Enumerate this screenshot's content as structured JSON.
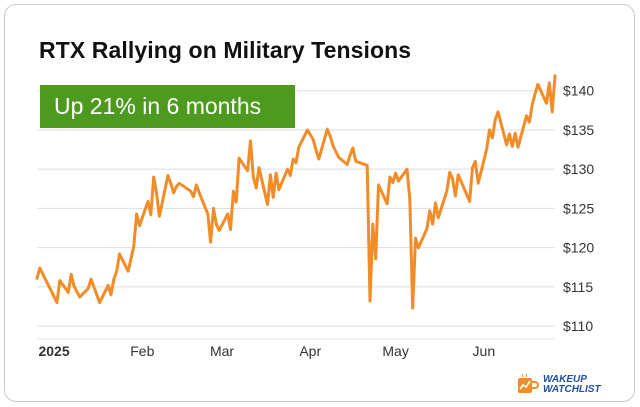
{
  "badge": "Up 21% in 6 months",
  "brand": {
    "line1": "WAKEUP",
    "line2": "WATCHLIST",
    "icon": "coffee-mug-chart-icon"
  },
  "colors": {
    "line": "#f28c28",
    "badge": "#4e9a1e",
    "grid": "#dddddd",
    "text": "#333333",
    "brand": "#1f4fa8"
  },
  "chart_data": {
    "type": "line",
    "title": "RTX Rallying on Military Tensions",
    "xlabel": "",
    "ylabel": "",
    "ylim": [
      109,
      142
    ],
    "xlim": [
      "2024-12-26",
      "2025-06-19"
    ],
    "grid": true,
    "y_axis_side": "right",
    "y_ticks": [
      {
        "value": 110,
        "label": "$110"
      },
      {
        "value": 115,
        "label": "$115"
      },
      {
        "value": 120,
        "label": "$120"
      },
      {
        "value": 125,
        "label": "$125"
      },
      {
        "value": 130,
        "label": "$130"
      },
      {
        "value": 135,
        "label": "$135"
      },
      {
        "value": 140,
        "label": "$140"
      }
    ],
    "x_ticks": [
      {
        "date": "2025-01-01",
        "label": "2025"
      },
      {
        "date": "2025-02-01",
        "label": "Feb"
      },
      {
        "date": "2025-03-01",
        "label": "Mar"
      },
      {
        "date": "2025-04-01",
        "label": "Apr"
      },
      {
        "date": "2025-05-01",
        "label": "May"
      },
      {
        "date": "2025-06-01",
        "label": "Jun"
      }
    ],
    "series": [
      {
        "points": [
          [
            "2024-12-26",
            116.1
          ],
          [
            "2024-12-27",
            117.4
          ],
          [
            "2024-12-30",
            115.2
          ],
          [
            "2024-12-31",
            114.5
          ],
          [
            "2025-01-02",
            113.0
          ],
          [
            "2025-01-03",
            115.8
          ],
          [
            "2025-01-06",
            114.3
          ],
          [
            "2025-01-07",
            116.6
          ],
          [
            "2025-01-08",
            115.1
          ],
          [
            "2025-01-10",
            113.7
          ],
          [
            "2025-01-13",
            114.8
          ],
          [
            "2025-01-14",
            116.0
          ],
          [
            "2025-01-15",
            115.0
          ],
          [
            "2025-01-16",
            114.0
          ],
          [
            "2025-01-17",
            113.0
          ],
          [
            "2025-01-20",
            115.2
          ],
          [
            "2025-01-21",
            114.0
          ],
          [
            "2025-01-22",
            116.0
          ],
          [
            "2025-01-23",
            117.0
          ],
          [
            "2025-01-24",
            119.2
          ],
          [
            "2025-01-27",
            117.0
          ],
          [
            "2025-01-28",
            118.5
          ],
          [
            "2025-01-29",
            120.2
          ],
          [
            "2025-01-30",
            124.3
          ],
          [
            "2025-01-31",
            122.8
          ],
          [
            "2025-02-03",
            125.9
          ],
          [
            "2025-02-04",
            124.2
          ],
          [
            "2025-02-05",
            129.0
          ],
          [
            "2025-02-06",
            127.0
          ],
          [
            "2025-02-07",
            124.0
          ],
          [
            "2025-02-10",
            129.2
          ],
          [
            "2025-02-11",
            128.2
          ],
          [
            "2025-02-12",
            127.0
          ],
          [
            "2025-02-13",
            127.8
          ],
          [
            "2025-02-14",
            128.2
          ],
          [
            "2025-02-18",
            127.2
          ],
          [
            "2025-02-19",
            126.5
          ],
          [
            "2025-02-20",
            128.0
          ],
          [
            "2025-02-21",
            127.0
          ],
          [
            "2025-02-24",
            124.3
          ],
          [
            "2025-02-25",
            120.7
          ],
          [
            "2025-02-26",
            125.0
          ],
          [
            "2025-02-27",
            123.0
          ],
          [
            "2025-02-28",
            122.2
          ],
          [
            "2025-03-03",
            124.3
          ],
          [
            "2025-03-04",
            122.3
          ],
          [
            "2025-03-05",
            127.2
          ],
          [
            "2025-03-06",
            125.8
          ],
          [
            "2025-03-07",
            131.4
          ],
          [
            "2025-03-10",
            129.8
          ],
          [
            "2025-03-11",
            133.6
          ],
          [
            "2025-03-12",
            129.0
          ],
          [
            "2025-03-13",
            127.6
          ],
          [
            "2025-03-14",
            130.2
          ],
          [
            "2025-03-17",
            125.5
          ],
          [
            "2025-03-18",
            129.3
          ],
          [
            "2025-03-19",
            126.4
          ],
          [
            "2025-03-20",
            129.5
          ],
          [
            "2025-03-21",
            127.4
          ],
          [
            "2025-03-24",
            130.0
          ],
          [
            "2025-03-25",
            129.2
          ],
          [
            "2025-03-26",
            131.3
          ],
          [
            "2025-03-27",
            130.8
          ],
          [
            "2025-03-28",
            132.8
          ],
          [
            "2025-03-31",
            135.0
          ],
          [
            "2025-04-02",
            133.8
          ],
          [
            "2025-04-03",
            132.5
          ],
          [
            "2025-04-04",
            131.3
          ],
          [
            "2025-04-07",
            135.1
          ],
          [
            "2025-04-08",
            134.2
          ],
          [
            "2025-04-09",
            133.0
          ],
          [
            "2025-04-11",
            131.5
          ],
          [
            "2025-04-14",
            130.6
          ],
          [
            "2025-04-15",
            131.8
          ],
          [
            "2025-04-16",
            132.7
          ],
          [
            "2025-04-17",
            131.0
          ],
          [
            "2025-04-21",
            130.5
          ],
          [
            "2025-04-22",
            113.2
          ],
          [
            "2025-04-23",
            123.0
          ],
          [
            "2025-04-24",
            118.6
          ],
          [
            "2025-04-25",
            128.0
          ],
          [
            "2025-04-28",
            125.6
          ],
          [
            "2025-04-29",
            129.0
          ],
          [
            "2025-04-30",
            128.3
          ],
          [
            "2025-05-01",
            129.5
          ],
          [
            "2025-05-02",
            128.5
          ],
          [
            "2025-05-05",
            130.0
          ],
          [
            "2025-05-06",
            126.2
          ],
          [
            "2025-05-07",
            112.3
          ],
          [
            "2025-05-08",
            121.2
          ],
          [
            "2025-05-09",
            120.0
          ],
          [
            "2025-05-12",
            122.4
          ],
          [
            "2025-05-13",
            124.7
          ],
          [
            "2025-05-14",
            123.0
          ],
          [
            "2025-05-15",
            125.7
          ],
          [
            "2025-05-16",
            123.8
          ],
          [
            "2025-05-19",
            127.2
          ],
          [
            "2025-05-20",
            129.6
          ],
          [
            "2025-05-21",
            128.8
          ],
          [
            "2025-05-22",
            126.6
          ],
          [
            "2025-05-23",
            129.3
          ],
          [
            "2025-05-27",
            125.9
          ],
          [
            "2025-05-28",
            130.2
          ],
          [
            "2025-05-29",
            131.0
          ],
          [
            "2025-05-30",
            128.2
          ],
          [
            "2025-06-02",
            132.6
          ],
          [
            "2025-06-03",
            135.0
          ],
          [
            "2025-06-04",
            134.0
          ],
          [
            "2025-06-05",
            136.3
          ],
          [
            "2025-06-06",
            137.3
          ],
          [
            "2025-06-09",
            133.1
          ],
          [
            "2025-06-10",
            134.5
          ],
          [
            "2025-06-11",
            132.9
          ],
          [
            "2025-06-12",
            134.6
          ],
          [
            "2025-06-13",
            132.8
          ],
          [
            "2025-06-16",
            136.8
          ],
          [
            "2025-06-17",
            136.0
          ],
          [
            "2025-06-18",
            138.2
          ],
          [
            "2025-06-19",
            139.6
          ],
          [
            "2025-06-20",
            140.8
          ],
          [
            "2025-06-23",
            138.4
          ],
          [
            "2025-06-24",
            141.0
          ],
          [
            "2025-06-25",
            137.3
          ],
          [
            "2025-06-26",
            141.9
          ]
        ]
      }
    ]
  }
}
